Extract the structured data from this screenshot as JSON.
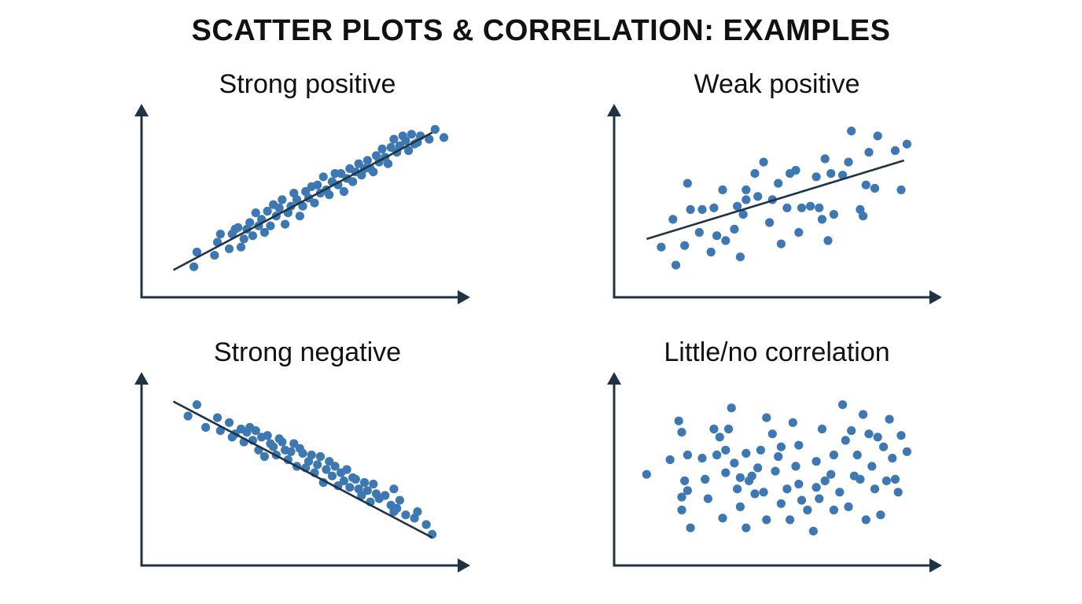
{
  "title": "SCATTER PLOTS & CORRELATION: EXAMPLES",
  "colors": {
    "point": "#3d78b3",
    "axis": "#1f3344",
    "trend": "#1f3344",
    "highlight": "#4aa8e0"
  },
  "chart_data": [
    {
      "type": "scatter",
      "title": "Strong positive",
      "xlim": [
        0,
        100
      ],
      "ylim": [
        0,
        100
      ],
      "grid": false,
      "trendline": [
        [
          6,
          8
        ],
        [
          94,
          92
        ]
      ],
      "points": [
        [
          13,
          10
        ],
        [
          14,
          19
        ],
        [
          20,
          17
        ],
        [
          21,
          25
        ],
        [
          22,
          30
        ],
        [
          25,
          21
        ],
        [
          26,
          30
        ],
        [
          27,
          33
        ],
        [
          28,
          34
        ],
        [
          29,
          22
        ],
        [
          30,
          27
        ],
        [
          31,
          33
        ],
        [
          32,
          37
        ],
        [
          33,
          29
        ],
        [
          34,
          43
        ],
        [
          35,
          35
        ],
        [
          36,
          39
        ],
        [
          37,
          31
        ],
        [
          38,
          44
        ],
        [
          39,
          35
        ],
        [
          40,
          48
        ],
        [
          41,
          41
        ],
        [
          42,
          46
        ],
        [
          43,
          51
        ],
        [
          44,
          36
        ],
        [
          45,
          43
        ],
        [
          46,
          47
        ],
        [
          47,
          55
        ],
        [
          48,
          51
        ],
        [
          49,
          41
        ],
        [
          50,
          47
        ],
        [
          51,
          56
        ],
        [
          52,
          52
        ],
        [
          53,
          59
        ],
        [
          54,
          49
        ],
        [
          55,
          60
        ],
        [
          56,
          55
        ],
        [
          57,
          65
        ],
        [
          58,
          57
        ],
        [
          59,
          54
        ],
        [
          60,
          62
        ],
        [
          61,
          67
        ],
        [
          62,
          60
        ],
        [
          63,
          67
        ],
        [
          64,
          56
        ],
        [
          65,
          64
        ],
        [
          66,
          70
        ],
        [
          67,
          62
        ],
        [
          68,
          68
        ],
        [
          69,
          73
        ],
        [
          70,
          66
        ],
        [
          71,
          70
        ],
        [
          72,
          75
        ],
        [
          73,
          70
        ],
        [
          74,
          68
        ],
        [
          75,
          78
        ],
        [
          76,
          74
        ],
        [
          77,
          82
        ],
        [
          78,
          77
        ],
        [
          79,
          73
        ],
        [
          80,
          83
        ],
        [
          81,
          88
        ],
        [
          82,
          80
        ],
        [
          83,
          84
        ],
        [
          84,
          90
        ],
        [
          85,
          87
        ],
        [
          86,
          81
        ],
        [
          87,
          91
        ],
        [
          88,
          85
        ],
        [
          89,
          86
        ],
        [
          90,
          90
        ],
        [
          93,
          88
        ],
        [
          95,
          94
        ],
        [
          98,
          89
        ]
      ]
    },
    {
      "type": "scatter",
      "title": "Weak positive",
      "xlim": [
        0,
        100
      ],
      "ylim": [
        0,
        100
      ],
      "grid": false,
      "trendline": [
        [
          6,
          27
        ],
        [
          94,
          75
        ]
      ],
      "points": [
        [
          11,
          22
        ],
        [
          15,
          39
        ],
        [
          16,
          11
        ],
        [
          19,
          23
        ],
        [
          20,
          61
        ],
        [
          21,
          45
        ],
        [
          24,
          31
        ],
        [
          25,
          45
        ],
        [
          28,
          19
        ],
        [
          29,
          46
        ],
        [
          30,
          29
        ],
        [
          32,
          57
        ],
        [
          33,
          26
        ],
        [
          36,
          33
        ],
        [
          37,
          47
        ],
        [
          38,
          16
        ],
        [
          39,
          42
        ],
        [
          40,
          51
        ],
        [
          40,
          57
        ],
        [
          43,
          67
        ],
        [
          44,
          53
        ],
        [
          46,
          74
        ],
        [
          48,
          37
        ],
        [
          49,
          51
        ],
        [
          51,
          61
        ],
        [
          52,
          24
        ],
        [
          54,
          46
        ],
        [
          55,
          67
        ],
        [
          57,
          69
        ],
        [
          58,
          31
        ],
        [
          59,
          46
        ],
        [
          62,
          47
        ],
        [
          64,
          65
        ],
        [
          65,
          46
        ],
        [
          66,
          39
        ],
        [
          67,
          76
        ],
        [
          68,
          26
        ],
        [
          69,
          67
        ],
        [
          70,
          42
        ],
        [
          73,
          66
        ],
        [
          75,
          74
        ],
        [
          76,
          93
        ],
        [
          79,
          45
        ],
        [
          80,
          41
        ],
        [
          81,
          60
        ],
        [
          82,
          80
        ],
        [
          84,
          58
        ],
        [
          85,
          90
        ],
        [
          91,
          81
        ],
        [
          93,
          57
        ],
        [
          95,
          85
        ]
      ]
    },
    {
      "type": "scatter",
      "title": "Strong negative",
      "xlim": [
        0,
        100
      ],
      "ylim": [
        0,
        100
      ],
      "grid": false,
      "trendline": [
        [
          6,
          92
        ],
        [
          94,
          8
        ]
      ],
      "points": [
        [
          11,
          83
        ],
        [
          14,
          90
        ],
        [
          17,
          76
        ],
        [
          21,
          82
        ],
        [
          22,
          74
        ],
        [
          25,
          79
        ],
        [
          26,
          70
        ],
        [
          27,
          72
        ],
        [
          29,
          75
        ],
        [
          30,
          67
        ],
        [
          31,
          73
        ],
        [
          32,
          76
        ],
        [
          33,
          68
        ],
        [
          34,
          74
        ],
        [
          35,
          62
        ],
        [
          36,
          70
        ],
        [
          37,
          58
        ],
        [
          38,
          71
        ],
        [
          39,
          66
        ],
        [
          40,
          64
        ],
        [
          41,
          59
        ],
        [
          42,
          69
        ],
        [
          43,
          67
        ],
        [
          44,
          62
        ],
        [
          45,
          56
        ],
        [
          46,
          61
        ],
        [
          47,
          66
        ],
        [
          48,
          52
        ],
        [
          49,
          63
        ],
        [
          50,
          60
        ],
        [
          51,
          51
        ],
        [
          52,
          55
        ],
        [
          53,
          59
        ],
        [
          54,
          48
        ],
        [
          55,
          53
        ],
        [
          56,
          58
        ],
        [
          57,
          42
        ],
        [
          58,
          50
        ],
        [
          59,
          55
        ],
        [
          60,
          46
        ],
        [
          61,
          52
        ],
        [
          62,
          40
        ],
        [
          63,
          48
        ],
        [
          64,
          43
        ],
        [
          65,
          50
        ],
        [
          66,
          39
        ],
        [
          67,
          45
        ],
        [
          68,
          44
        ],
        [
          69,
          38
        ],
        [
          70,
          34
        ],
        [
          71,
          42
        ],
        [
          72,
          37
        ],
        [
          73,
          30
        ],
        [
          74,
          41
        ],
        [
          75,
          35
        ],
        [
          76,
          32
        ],
        [
          78,
          34
        ],
        [
          80,
          28
        ],
        [
          81,
          24
        ],
        [
          81,
          38
        ],
        [
          82,
          26
        ],
        [
          83,
          31
        ],
        [
          85,
          22
        ],
        [
          88,
          20
        ],
        [
          89,
          24
        ],
        [
          92,
          16
        ],
        [
          94,
          10
        ]
      ]
    },
    {
      "type": "scatter",
      "title": "Little/no correlation",
      "xlim": [
        0,
        100
      ],
      "ylim": [
        0,
        100
      ],
      "grid": false,
      "points": [
        [
          6,
          47
        ],
        [
          14,
          56
        ],
        [
          17,
          80
        ],
        [
          18,
          73
        ],
        [
          18,
          25
        ],
        [
          18,
          33
        ],
        [
          19,
          43
        ],
        [
          20,
          37
        ],
        [
          20,
          59
        ],
        [
          21,
          14
        ],
        [
          25,
          57
        ],
        [
          26,
          44
        ],
        [
          27,
          32
        ],
        [
          29,
          75
        ],
        [
          30,
          59
        ],
        [
          31,
          70
        ],
        [
          32,
          20
        ],
        [
          33,
          62
        ],
        [
          33,
          48
        ],
        [
          34,
          75
        ],
        [
          35,
          88
        ],
        [
          36,
          54
        ],
        [
          37,
          38
        ],
        [
          38,
          45
        ],
        [
          38,
          27
        ],
        [
          40,
          14
        ],
        [
          40,
          60
        ],
        [
          41,
          43
        ],
        [
          42,
          46
        ],
        [
          43,
          35
        ],
        [
          44,
          51
        ],
        [
          45,
          62
        ],
        [
          46,
          36
        ],
        [
          47,
          82
        ],
        [
          47,
          19
        ],
        [
          49,
          72
        ],
        [
          50,
          49
        ],
        [
          51,
          58
        ],
        [
          52,
          29
        ],
        [
          52,
          64
        ],
        [
          54,
          38
        ],
        [
          55,
          19
        ],
        [
          56,
          79
        ],
        [
          57,
          52
        ],
        [
          58,
          41
        ],
        [
          58,
          65
        ],
        [
          59,
          31
        ],
        [
          61,
          25
        ],
        [
          63,
          12
        ],
        [
          64,
          55
        ],
        [
          64,
          39
        ],
        [
          65,
          32
        ],
        [
          66,
          75
        ],
        [
          67,
          43
        ],
        [
          69,
          47
        ],
        [
          70,
          59
        ],
        [
          70,
          25
        ],
        [
          72,
          36
        ],
        [
          73,
          90
        ],
        [
          74,
          68
        ],
        [
          75,
          27
        ],
        [
          76,
          74
        ],
        [
          77,
          46
        ],
        [
          78,
          59
        ],
        [
          79,
          44
        ],
        [
          80,
          84
        ],
        [
          81,
          19
        ],
        [
          82,
          72
        ],
        [
          83,
          52
        ],
        [
          84,
          38
        ],
        [
          85,
          70
        ],
        [
          86,
          22
        ],
        [
          87,
          64
        ],
        [
          88,
          43
        ],
        [
          89,
          81
        ],
        [
          90,
          57
        ],
        [
          91,
          44
        ],
        [
          92,
          36
        ],
        [
          93,
          71
        ],
        [
          95,
          61
        ]
      ]
    }
  ]
}
